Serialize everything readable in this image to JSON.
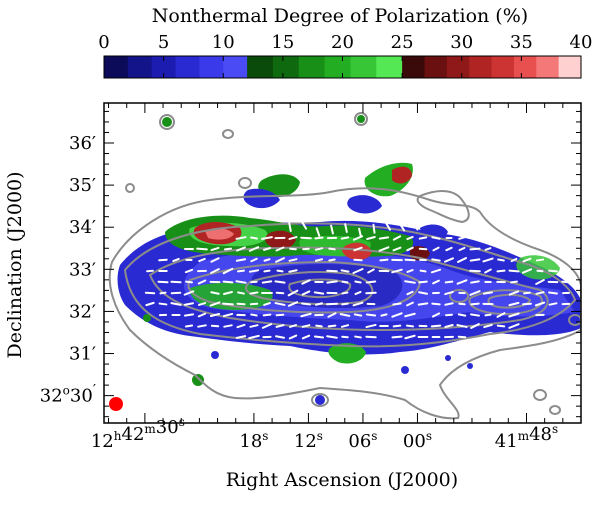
{
  "chart_data": {
    "type": "heatmap",
    "colorbar": {
      "title": "Nonthermal Degree of Polarization (%)",
      "ticks": [
        "0",
        "5",
        "10",
        "15",
        "20",
        "25",
        "30",
        "35",
        "40"
      ],
      "range": [
        0,
        40
      ],
      "bands": [
        {
          "from": 0,
          "to": 12,
          "colors": [
            "#0b0b5a",
            "#13138a",
            "#1c1cb0",
            "#2a2ad2",
            "#3a3aea",
            "#4b4bf5"
          ]
        },
        {
          "from": 12,
          "to": 25,
          "colors": [
            "#0a4a0a",
            "#0f6a0f",
            "#189018",
            "#22ad22",
            "#36c636",
            "#55e855"
          ]
        },
        {
          "from": 25,
          "to": 40,
          "colors": [
            "#3a0a0a",
            "#6a1010",
            "#8f1818",
            "#b02424",
            "#cc3434",
            "#e85050",
            "#f57878",
            "#ffd0d0"
          ]
        }
      ]
    },
    "xlabel": "Right Ascension (J2000)",
    "ylabel": "Declination (J2000)",
    "x_ticks": [
      {
        "h": "12",
        "m": "42",
        "s": "30",
        "ra_s": 150
      },
      {
        "s": "18",
        "ra_s": 138
      },
      {
        "s": "12",
        "ra_s": 132
      },
      {
        "s": "06",
        "ra_s": 126
      },
      {
        "s": "00",
        "ra_s": 120
      },
      {
        "m": "41",
        "s": "48",
        "ra_s": 108
      }
    ],
    "x_range_ra_s": [
      154.5,
      102
    ],
    "y_ticks": [
      {
        "label": "36′",
        "dec_arcmin": 36
      },
      {
        "label": "35′",
        "dec_arcmin": 35
      },
      {
        "label": "34′",
        "dec_arcmin": 34
      },
      {
        "label": "33′",
        "dec_arcmin": 33
      },
      {
        "label": "32′",
        "dec_arcmin": 32
      },
      {
        "label": "31′",
        "dec_arcmin": 31
      },
      {
        "deg": "32",
        "min": "30",
        "dec_arcmin": 30
      }
    ],
    "y_range_arcmin": [
      29.35,
      36.95
    ],
    "beam": {
      "color": "#ff0000"
    },
    "contour_color": "#8c8c8c",
    "vector_color": "#ffffff"
  }
}
